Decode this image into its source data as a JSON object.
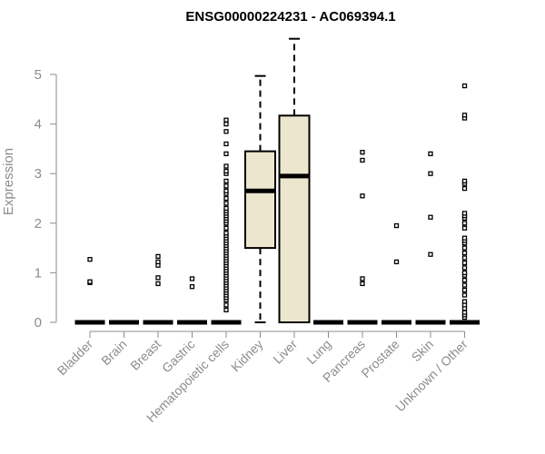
{
  "chart_data": {
    "type": "box",
    "title": "ENSG00000224231 - AC069394.1",
    "xlabel": "",
    "ylabel": "Expression",
    "ylim": [
      0,
      5.8
    ],
    "yticks": [
      0,
      1,
      2,
      3,
      4,
      5
    ],
    "grid": false,
    "legend": "none",
    "box_fill": "#ede6cf",
    "axis_color": "#8c8c8c",
    "categories": [
      "Bladder",
      "Brain",
      "Breast",
      "Gastric",
      "Hematopoietic cells",
      "Kidney",
      "Liver",
      "Lung",
      "Pancreas",
      "Prostate",
      "Skin",
      "Unknown / Other"
    ],
    "boxes": [
      {
        "name": "Bladder",
        "q1": 0,
        "median": 0,
        "q3": 0,
        "whisker_low": 0,
        "whisker_high": 0,
        "outliers": [
          0.8,
          0.82,
          1.27
        ]
      },
      {
        "name": "Brain",
        "q1": 0,
        "median": 0,
        "q3": 0,
        "whisker_low": 0,
        "whisker_high": 0,
        "outliers": []
      },
      {
        "name": "Breast",
        "q1": 0,
        "median": 0,
        "q3": 0,
        "whisker_low": 0,
        "whisker_high": 0,
        "outliers": [
          0.78,
          0.9,
          1.15,
          1.22,
          1.33
        ]
      },
      {
        "name": "Gastric",
        "q1": 0,
        "median": 0,
        "q3": 0,
        "whisker_low": 0,
        "whisker_high": 0,
        "outliers": [
          0.72,
          0.88
        ]
      },
      {
        "name": "Hematopoietic cells",
        "q1": 0,
        "median": 0,
        "q3": 0,
        "whisker_low": 0,
        "whisker_high": 0,
        "outliers": [
          0.25,
          0.35,
          0.45,
          0.5,
          0.55,
          0.6,
          0.65,
          0.7,
          0.75,
          0.8,
          0.85,
          0.9,
          0.95,
          1.0,
          1.05,
          1.1,
          1.15,
          1.2,
          1.25,
          1.3,
          1.35,
          1.4,
          1.45,
          1.5,
          1.55,
          1.6,
          1.65,
          1.7,
          1.75,
          1.8,
          1.9,
          2.0,
          2.05,
          2.1,
          2.15,
          2.2,
          2.25,
          2.3,
          2.4,
          2.5,
          2.6,
          2.65,
          2.75,
          2.85,
          3.0,
          3.05,
          3.15,
          3.4,
          3.6,
          3.85,
          4.0,
          4.08
        ]
      },
      {
        "name": "Kidney",
        "q1": 1.5,
        "median": 2.65,
        "q3": 3.45,
        "whisker_low": 0,
        "whisker_high": 4.97,
        "outliers": []
      },
      {
        "name": "Liver",
        "q1": 0,
        "median": 2.95,
        "q3": 4.17,
        "whisker_low": 0,
        "whisker_high": 5.72,
        "outliers": []
      },
      {
        "name": "Lung",
        "q1": 0,
        "median": 0,
        "q3": 0,
        "whisker_low": 0,
        "whisker_high": 0,
        "outliers": []
      },
      {
        "name": "Pancreas",
        "q1": 0,
        "median": 0,
        "q3": 0,
        "whisker_low": 0,
        "whisker_high": 0,
        "outliers": [
          0.78,
          0.88,
          2.55,
          3.27,
          3.43
        ]
      },
      {
        "name": "Prostate",
        "q1": 0,
        "median": 0,
        "q3": 0,
        "whisker_low": 0,
        "whisker_high": 0,
        "outliers": [
          1.22,
          1.95
        ]
      },
      {
        "name": "Skin",
        "q1": 0,
        "median": 0,
        "q3": 0,
        "whisker_low": 0,
        "whisker_high": 0,
        "outliers": [
          1.37,
          2.12,
          3.0,
          3.4
        ]
      },
      {
        "name": "Unknown / Other",
        "q1": 0,
        "median": 0,
        "q3": 0,
        "whisker_low": 0,
        "whisker_high": 0,
        "outliers": [
          0.1,
          0.15,
          0.2,
          0.28,
          0.35,
          0.42,
          0.55,
          0.65,
          0.75,
          0.85,
          0.95,
          1.0,
          1.1,
          1.2,
          1.3,
          1.4,
          1.5,
          1.6,
          1.65,
          1.7,
          1.9,
          2.0,
          2.1,
          2.15,
          2.2,
          2.7,
          2.8,
          2.85,
          4.12,
          4.18,
          4.77
        ]
      }
    ]
  }
}
